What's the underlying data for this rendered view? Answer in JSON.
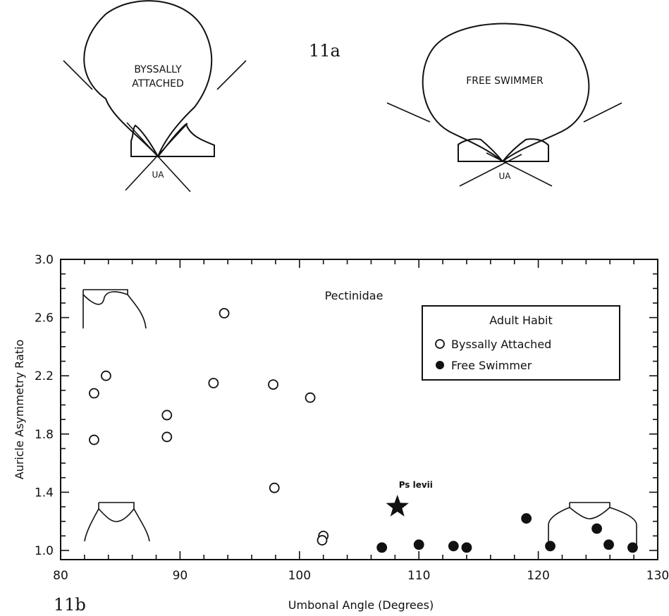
{
  "figure_a": {
    "label": "11a",
    "left_shell_text_line1": "BYSSALLY",
    "left_shell_text_line2": "ATTACHED",
    "left_angle_label": "UA",
    "right_shell_text": "FREE  SWIMMER",
    "right_angle_label": "UA"
  },
  "figure_b": {
    "label": "11b"
  },
  "chart_data": {
    "type": "scatter",
    "title": "Pectinidae",
    "xlabel": "Umbonal   Angle   (Degrees)",
    "ylabel": "Auricle   Asymmetry   Ratio",
    "xlim": [
      80,
      130
    ],
    "ylim": [
      0.95,
      3.0
    ],
    "x_ticks": [
      "80",
      "90",
      "100",
      "110",
      "120",
      "130"
    ],
    "y_ticks": [
      "1.0",
      "1.4",
      "1.8",
      "2.2",
      "2.6",
      "3.0"
    ],
    "x_tick_values": [
      80,
      90,
      100,
      110,
      120,
      130
    ],
    "y_tick_values": [
      1.0,
      1.4,
      1.8,
      2.2,
      2.6,
      3.0
    ],
    "legend": {
      "title": "Adult   Habit",
      "placement": "top-right",
      "entries": [
        "Byssally   Attached",
        "Free   Swimmer"
      ]
    },
    "series": [
      {
        "name": "Byssally   Attached",
        "marker": "open-circle",
        "points": [
          [
            82.8,
            2.08
          ],
          [
            83.8,
            2.2
          ],
          [
            82.8,
            1.76
          ],
          [
            88.9,
            1.93
          ],
          [
            88.9,
            1.78
          ],
          [
            92.8,
            2.15
          ],
          [
            93.7,
            2.63
          ],
          [
            97.8,
            2.14
          ],
          [
            97.9,
            1.43
          ],
          [
            100.9,
            2.05
          ],
          [
            102.0,
            1.1
          ],
          [
            101.9,
            1.07
          ]
        ]
      },
      {
        "name": "Free   Swimmer",
        "marker": "filled-circle",
        "points": [
          [
            106.9,
            1.02
          ],
          [
            110.0,
            1.04
          ],
          [
            112.9,
            1.03
          ],
          [
            114.0,
            1.02
          ],
          [
            119.0,
            1.22
          ],
          [
            121.0,
            1.03
          ],
          [
            124.9,
            1.15
          ],
          [
            125.9,
            1.04
          ],
          [
            127.9,
            1.02
          ]
        ]
      }
    ],
    "annotations": [
      {
        "text": "Ps levii",
        "x": 108.2,
        "y": 1.3,
        "marker": "star"
      }
    ],
    "colors": {
      "ink": "#111111",
      "background": "#ffffff"
    }
  }
}
